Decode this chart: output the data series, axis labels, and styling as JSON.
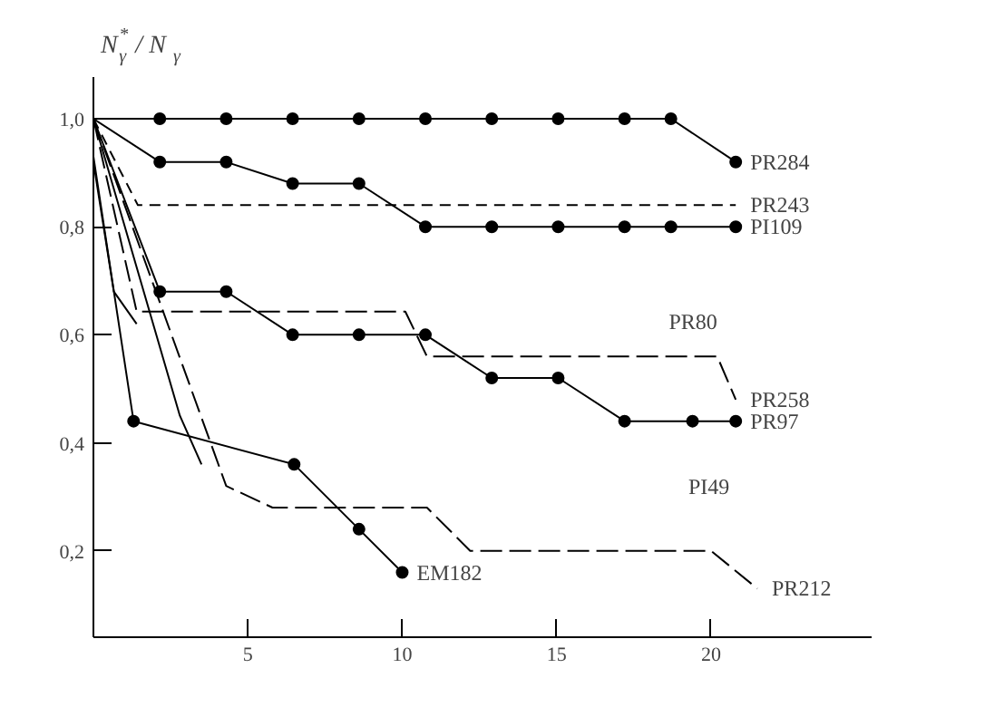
{
  "chart_data": {
    "type": "line",
    "ylabel": "N$^{*}$$_{γ}$ / N$_{γ}$",
    "xlim": [
      0,
      25.2
    ],
    "ylim": [
      0.04,
      1.077
    ],
    "xticks": [
      5,
      10,
      15,
      20
    ],
    "yticks": [
      {
        "value": 0.2,
        "label": "0,2"
      },
      {
        "value": 0.4,
        "label": "0,4"
      },
      {
        "value": 0.6,
        "label": "0,6"
      },
      {
        "value": 0.8,
        "label": "0,8"
      },
      {
        "value": 1.0,
        "label": "1,0"
      }
    ],
    "grid": false,
    "tick_labels": "xy",
    "series": [
      {
        "name": "PR284",
        "color": "#000000",
        "line_style": "solid",
        "marker": "circle",
        "x": [
          0,
          2.15,
          4.3,
          6.45,
          8.6,
          10.75,
          12.9,
          15.05,
          17.2,
          18.7,
          20.8
        ],
        "values": [
          1.0,
          1.0,
          1.0,
          1.0,
          1.0,
          1.0,
          1.0,
          1.0,
          1.0,
          1.0,
          0.92
        ]
      },
      {
        "name": "PR243",
        "color": "#000000",
        "line_style": "dashed",
        "marker": "none",
        "x": [
          0,
          1.44,
          20.8
        ],
        "values": [
          1.0,
          0.84,
          0.84
        ]
      },
      {
        "name": "PI109",
        "color": "#000000",
        "line_style": "solid",
        "marker": "circle",
        "x": [
          0,
          2.15,
          4.3,
          6.45,
          8.6,
          10.75,
          12.9,
          15.05,
          17.2,
          18.7,
          20.8
        ],
        "values": [
          1.0,
          0.92,
          0.92,
          0.88,
          0.88,
          0.8,
          0.8,
          0.8,
          0.8,
          0.8,
          0.8
        ]
      },
      {
        "name": "PR258",
        "color": "#000000",
        "line_style": "longdash",
        "marker": "none",
        "x": [
          0,
          1.4,
          10.1,
          10.8,
          20.2,
          20.8
        ],
        "values": [
          1.0,
          0.643,
          0.643,
          0.56,
          0.56,
          0.48
        ]
      },
      {
        "name": "PR97",
        "color": "#000000",
        "line_style": "solid",
        "marker": "circle",
        "x": [
          0,
          2.15,
          4.3,
          6.45,
          8.6,
          10.75,
          12.9,
          15.05,
          17.2,
          19.4,
          20.8
        ],
        "values": [
          1.0,
          0.68,
          0.68,
          0.6,
          0.6,
          0.6,
          0.52,
          0.52,
          0.44,
          0.44,
          0.44
        ]
      },
      {
        "color": "#000000",
        "line_style": "solid",
        "marker": "none",
        "x": [
          0,
          0.66,
          1.4
        ],
        "values": [
          0.92,
          0.68,
          0.62
        ]
      },
      {
        "color": "#000000",
        "line_style": "solid",
        "marker": "none",
        "x": [
          0,
          2.8,
          3.5
        ],
        "values": [
          1.0,
          0.45,
          0.36
        ]
      },
      {
        "name": "PR212",
        "color": "#000000",
        "line_style": "longdash",
        "marker": "none",
        "x": [
          0,
          4.3,
          5.8,
          10.8,
          12.2,
          20.0,
          21.5
        ],
        "values": [
          1.0,
          0.32,
          0.28,
          0.28,
          0.2,
          0.2,
          0.13
        ]
      },
      {
        "name": "EM182",
        "color": "#000000",
        "line_style": "solid",
        "marker": "circle",
        "x": [
          0,
          1.3,
          6.5,
          8.6,
          10.0
        ],
        "values": [
          0.93,
          0.44,
          0.36,
          0.24,
          0.16
        ]
      }
    ],
    "annotations": [
      {
        "text": "PR80",
        "x": 20.2,
        "y": 0.56
      },
      "PI49"
    ]
  }
}
